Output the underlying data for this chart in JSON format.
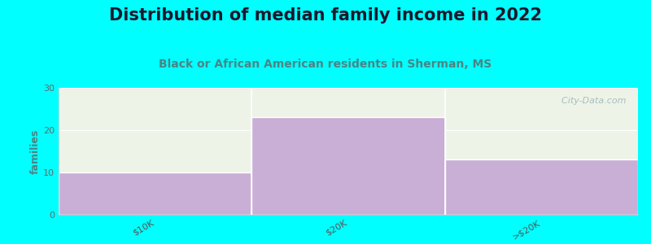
{
  "title": "Distribution of median family income in 2022",
  "subtitle": "Black or African American residents in Sherman, MS",
  "categories": [
    "$10K",
    "$20K",
    ">$20K"
  ],
  "values": [
    10,
    23,
    13
  ],
  "bar_color": "#C9AED6",
  "bar_edge_color": "white",
  "plot_bg_color": "#EEF3E8",
  "figure_bg_color": "#00FFFF",
  "title_color": "#1a1a2e",
  "subtitle_color": "#4a8585",
  "ylabel": "families",
  "ylim": [
    0,
    30
  ],
  "yticks": [
    0,
    10,
    20,
    30
  ],
  "title_fontsize": 15,
  "subtitle_fontsize": 10,
  "ylabel_fontsize": 9,
  "tick_fontsize": 8,
  "watermark_text": "  City-Data.com",
  "watermark_color": "#a0b8b8"
}
